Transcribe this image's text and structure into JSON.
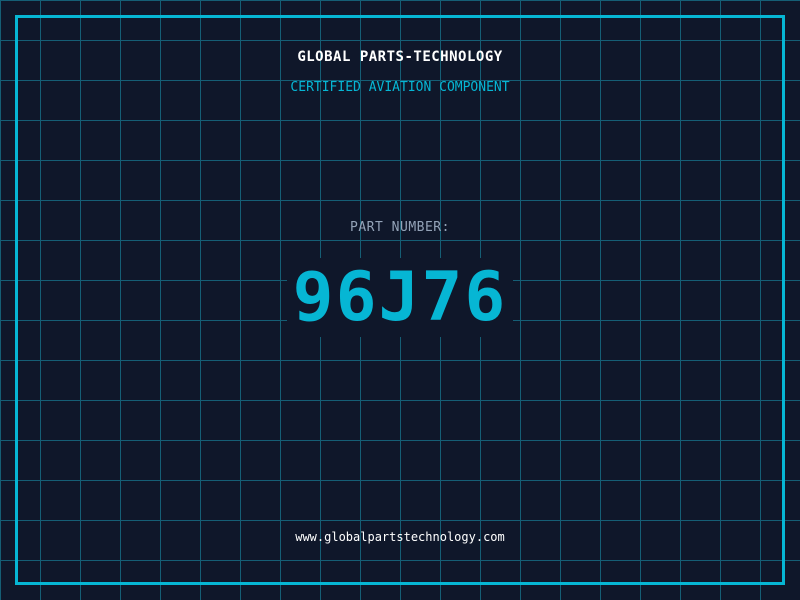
{
  "title": "GLOBAL PARTS-TECHNOLOGY",
  "subtitle": "CERTIFIED AVIATION COMPONENT",
  "part_label": "PART NUMBER:",
  "part_number": "96J76",
  "url": "www.globalpartstechnology.com",
  "colors": {
    "accent": "#06b6d4",
    "background": "#0f172a",
    "grid": "#155e75"
  }
}
